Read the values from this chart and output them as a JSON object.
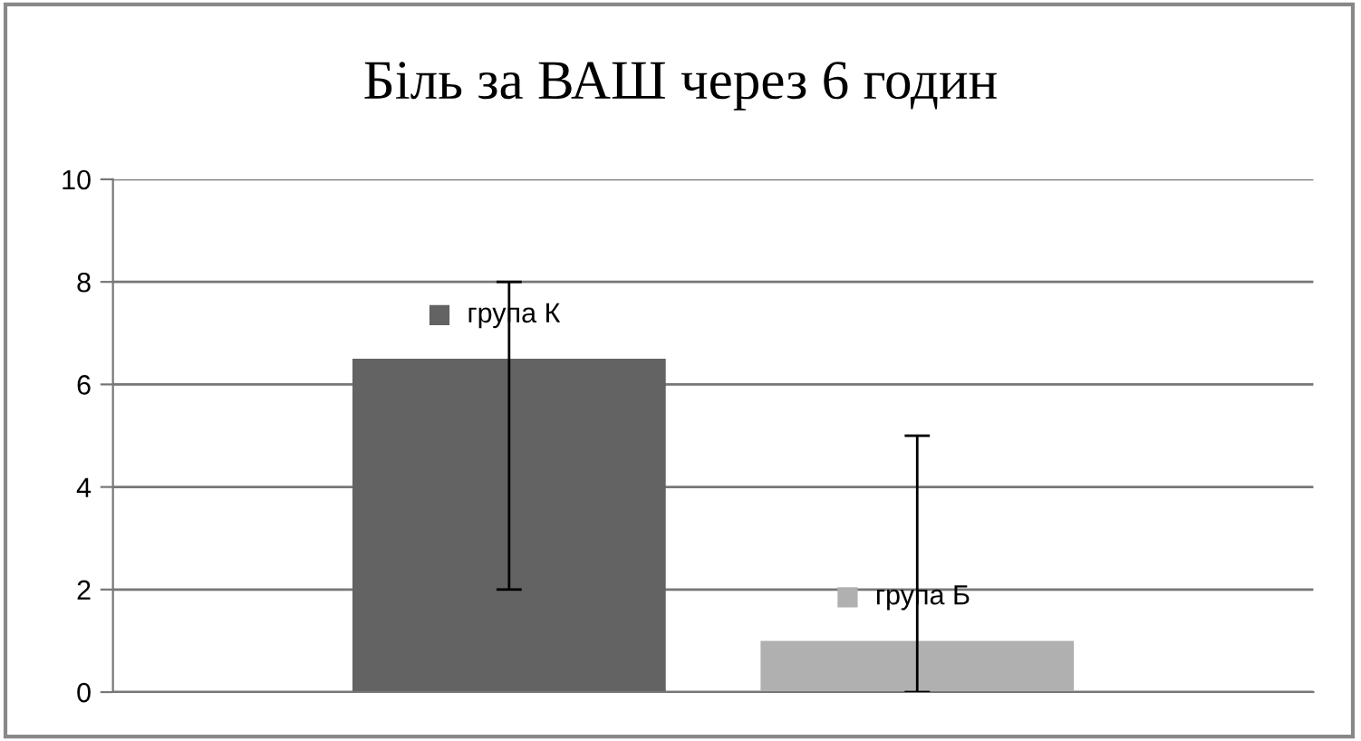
{
  "chart_data": {
    "type": "bar",
    "title": "Біль за ВАШ через 6 годин",
    "categories": [
      null
    ],
    "series": [
      {
        "name": "група К",
        "color": "#636363",
        "values": [
          6.5
        ],
        "errors": [
          [
            2,
            8
          ]
        ]
      },
      {
        "name": "група Б",
        "color": "#b0b0b0",
        "values": [
          1
        ],
        "errors": [
          [
            0,
            5
          ]
        ]
      }
    ],
    "ylim": [
      0,
      10
    ],
    "yticks": [
      0,
      2,
      4,
      6,
      8,
      10
    ],
    "grid": "y",
    "legend": "center",
    "tick_labels": "y"
  }
}
